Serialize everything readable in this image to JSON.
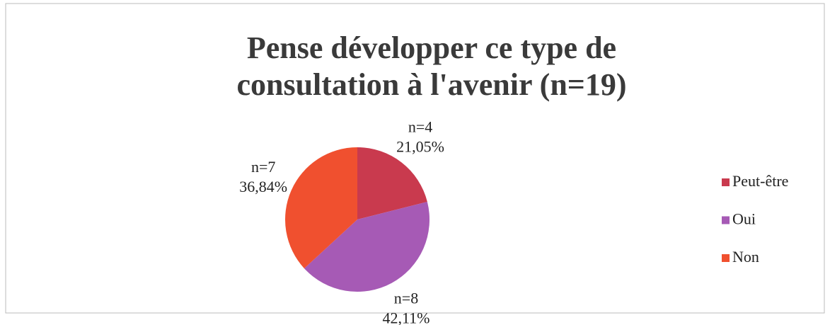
{
  "chart_data": {
    "type": "pie",
    "title": "Pense développer ce type de consultation à l'avenir (n=19)",
    "categories": [
      "Peut-être",
      "Oui",
      "Non"
    ],
    "values": [
      21.05,
      42.11,
      36.84
    ],
    "value_labels": [
      "21,05%",
      "42,11%",
      "36,84%"
    ],
    "count_labels": [
      "n=4",
      "n=8",
      "n=7"
    ],
    "colors": [
      "#c93a4e",
      "#a65ab5",
      "#f0502f"
    ],
    "legend": "right"
  }
}
